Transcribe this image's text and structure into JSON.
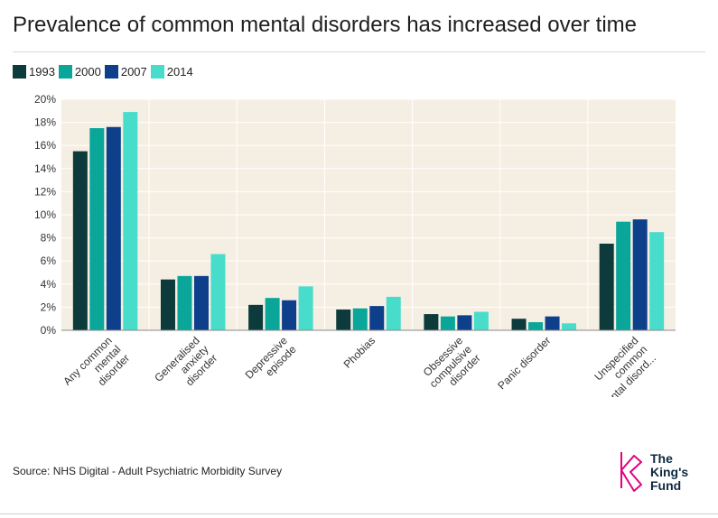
{
  "title": "Prevalence of common mental disorders has increased over time",
  "source": "Source: NHS Digital - Adult Psychiatric Morbidity Survey",
  "logo": {
    "line1": "The",
    "line2": "King's",
    "line3": "Fund"
  },
  "colors": {
    "background": "#f5efe3",
    "grid": "#ffffff",
    "1993": "#0d3b3b",
    "2000": "#0aa69a",
    "2007": "#0e3f8a",
    "2014": "#48dccb",
    "logo_pink": "#e6007e",
    "logo_text": "#0e2841"
  },
  "chart_data": {
    "type": "bar",
    "title": "Prevalence of common mental disorders has increased over time",
    "xlabel": "",
    "ylabel": "",
    "ylim": [
      0,
      20
    ],
    "yticks": [
      "0%",
      "2%",
      "4%",
      "6%",
      "8%",
      "10%",
      "12%",
      "14%",
      "16%",
      "18%",
      "20%"
    ],
    "legend_position": "top-left",
    "categories": [
      "Any common mental disorder",
      "Generalised anxiety disorder",
      "Depressive episode",
      "Phobias",
      "Obsessive compulsive disorder",
      "Panic disorder",
      "Unspecified common mental disord..."
    ],
    "category_lines": [
      [
        "Any common",
        "mental",
        "disorder"
      ],
      [
        "Generalised",
        "anxiety",
        "disorder"
      ],
      [
        "Depressive",
        "episode"
      ],
      [
        "Phobias"
      ],
      [
        "Obsessive",
        "compulsive",
        "disorder"
      ],
      [
        "Panic disorder"
      ],
      [
        "Unspecified",
        "common",
        "mental disord..."
      ]
    ],
    "series": [
      {
        "name": "1993",
        "values": [
          15.5,
          4.4,
          2.2,
          1.8,
          1.4,
          1.0,
          7.5
        ]
      },
      {
        "name": "2000",
        "values": [
          17.5,
          4.7,
          2.8,
          1.9,
          1.2,
          0.7,
          9.4
        ]
      },
      {
        "name": "2007",
        "values": [
          17.6,
          4.7,
          2.6,
          2.1,
          1.3,
          1.2,
          9.6
        ]
      },
      {
        "name": "2014",
        "values": [
          18.9,
          6.6,
          3.8,
          2.9,
          1.6,
          0.6,
          8.5
        ]
      }
    ]
  }
}
